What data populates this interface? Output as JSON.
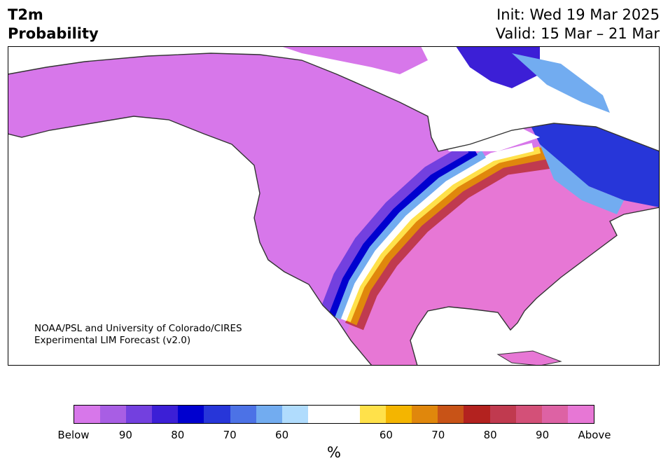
{
  "title": {
    "line1": "T2m",
    "line2": "Probability"
  },
  "dates": {
    "init": "Init: Wed 19 Mar 2025",
    "valid": "Valid: 15 Mar – 21 Mar"
  },
  "credit": {
    "line1": "NOAA/PSL and University of Colorado/CIRES",
    "line2": "Experimental LIM Forecast (v2.0)"
  },
  "colors": {
    "below": [
      "#d777ea",
      "#a85ee4",
      "#7340df",
      "#3c1fd6",
      "#0000cf",
      "#2736d9",
      "#4c72e6",
      "#72acf0",
      "#b0dcfd"
    ],
    "neutral": "#ffffff",
    "above": [
      "#ffe14a",
      "#f4b500",
      "#e0870c",
      "#c85317",
      "#b3221f",
      "#c03a4f",
      "#d35078",
      "#dd62a4",
      "#e777d5"
    ],
    "water": "#ffffff",
    "border": "#333333"
  },
  "colorbar": {
    "labels": [
      "Below",
      "90",
      "80",
      "70",
      "60",
      "60",
      "70",
      "80",
      "90",
      "Above"
    ],
    "unit": "%"
  }
}
